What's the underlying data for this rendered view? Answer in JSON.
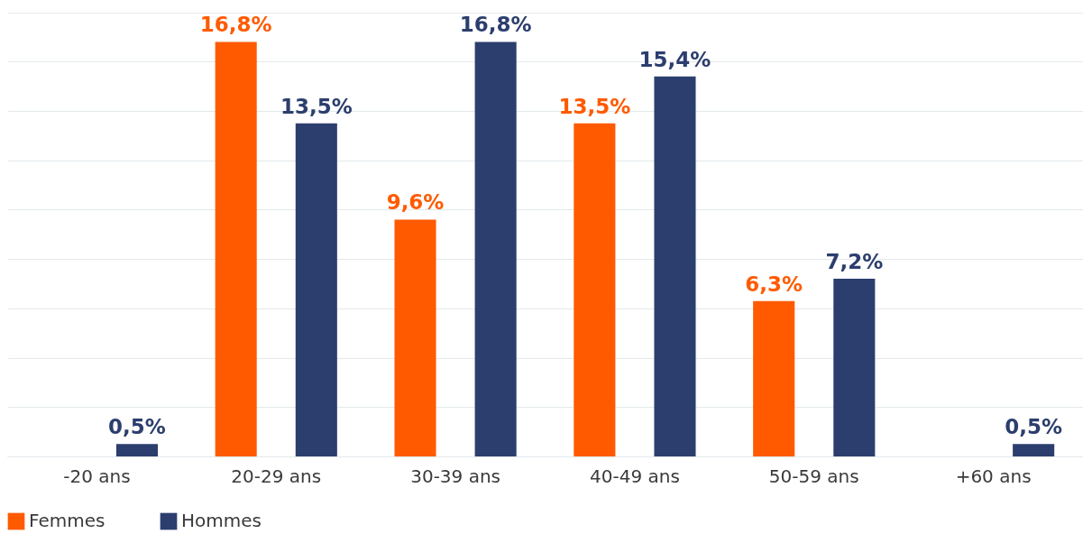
{
  "chart_data": {
    "type": "bar",
    "categories": [
      "-20 ans",
      "20-29 ans",
      "30-39 ans",
      "40-49 ans",
      "50-59 ans",
      "+60 ans"
    ],
    "series": [
      {
        "name": "Femmes",
        "color": "#ff5a00",
        "values": [
          null,
          16.8,
          9.6,
          13.5,
          6.3,
          null
        ],
        "value_labels": [
          null,
          "16,8%",
          "9,6%",
          "13,5%",
          "6,3%",
          null
        ]
      },
      {
        "name": "Hommes",
        "color": "#2c3e6e",
        "values": [
          0.5,
          13.5,
          16.8,
          15.4,
          7.2,
          0.5
        ],
        "value_labels": [
          "0,5%",
          "13,5%",
          "16,8%",
          "15,4%",
          "7,2%",
          "0,5%"
        ]
      }
    ],
    "ylim": [
      0,
      18.5
    ],
    "yticks": [
      {
        "value": 0,
        "label": null
      },
      {
        "value": 2,
        "label": null
      },
      {
        "value": 4,
        "label": null
      },
      {
        "value": 6,
        "label": null
      },
      {
        "value": 8,
        "label": null
      },
      {
        "value": 10,
        "label": null
      },
      {
        "value": 12,
        "label": null
      },
      {
        "value": 14,
        "label": null
      },
      {
        "value": 16,
        "label": null
      },
      {
        "value": 18,
        "label": null
      }
    ],
    "grid": "y",
    "legend": "bottom left",
    "tick_labels": "x"
  }
}
